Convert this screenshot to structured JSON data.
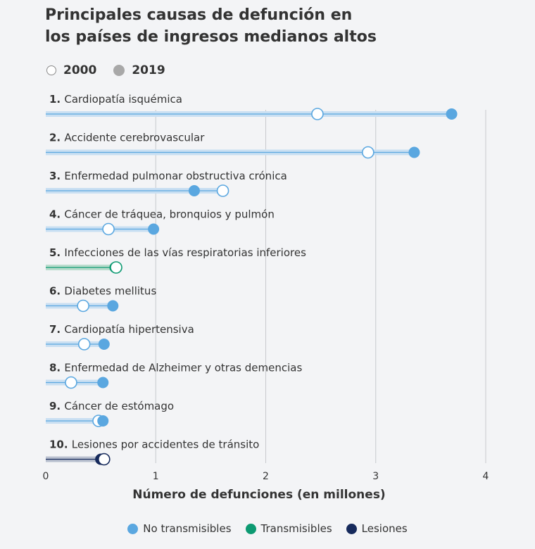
{
  "title_line1": "Principales causas de defunción en",
  "title_line2": "los países de ingresos medianos altos",
  "legend_periods": {
    "open": "2000",
    "filled": "2019"
  },
  "legend_categories": [
    {
      "label": "No transmisibles",
      "color": "#5aa7e0"
    },
    {
      "label": "Transmisibles",
      "color": "#0d9a72"
    },
    {
      "label": "Lesiones",
      "color": "#162a5c"
    }
  ],
  "chart_data": {
    "type": "dumbbell",
    "xlabel": "Número de defunciones (en millones)",
    "xlim": [
      0,
      4
    ],
    "xticks": [
      0,
      1,
      2,
      3,
      4
    ],
    "grid": true,
    "series_names": [
      "2000",
      "2019"
    ],
    "rows": [
      {
        "rank": "1.",
        "label": "Cardiopatía isquémica",
        "v2000": 2.47,
        "v2019": 3.69,
        "category": "No transmisibles"
      },
      {
        "rank": "2.",
        "label": "Accidente cerebrovascular",
        "v2000": 2.93,
        "v2019": 3.35,
        "category": "No transmisibles"
      },
      {
        "rank": "3.",
        "label": "Enfermedad pulmonar obstructiva crónica",
        "v2000": 1.61,
        "v2019": 1.35,
        "category": "No transmisibles"
      },
      {
        "rank": "4.",
        "label": "Cáncer de tráquea, bronquios y pulmón",
        "v2000": 0.57,
        "v2019": 0.98,
        "category": "No transmisibles"
      },
      {
        "rank": "5.",
        "label": "Infecciones de las vías respiratorias inferiores",
        "v2000": 0.64,
        "v2019": 0.63,
        "category": "Transmisibles"
      },
      {
        "rank": "6.",
        "label": "Diabetes mellitus",
        "v2000": 0.34,
        "v2019": 0.61,
        "category": "No transmisibles"
      },
      {
        "rank": "7.",
        "label": "Cardiopatía hipertensiva",
        "v2000": 0.35,
        "v2019": 0.53,
        "category": "No transmisibles"
      },
      {
        "rank": "8.",
        "label": "Enfermedad de Alzheimer y otras demencias",
        "v2000": 0.23,
        "v2019": 0.52,
        "category": "No transmisibles"
      },
      {
        "rank": "9.",
        "label": "Cáncer de estómago",
        "v2000": 0.48,
        "v2019": 0.52,
        "category": "No transmisibles"
      },
      {
        "rank": "10.",
        "label": "Lesiones por accidentes de tránsito",
        "v2000": 0.53,
        "v2019": 0.5,
        "category": "Lesiones"
      }
    ]
  }
}
